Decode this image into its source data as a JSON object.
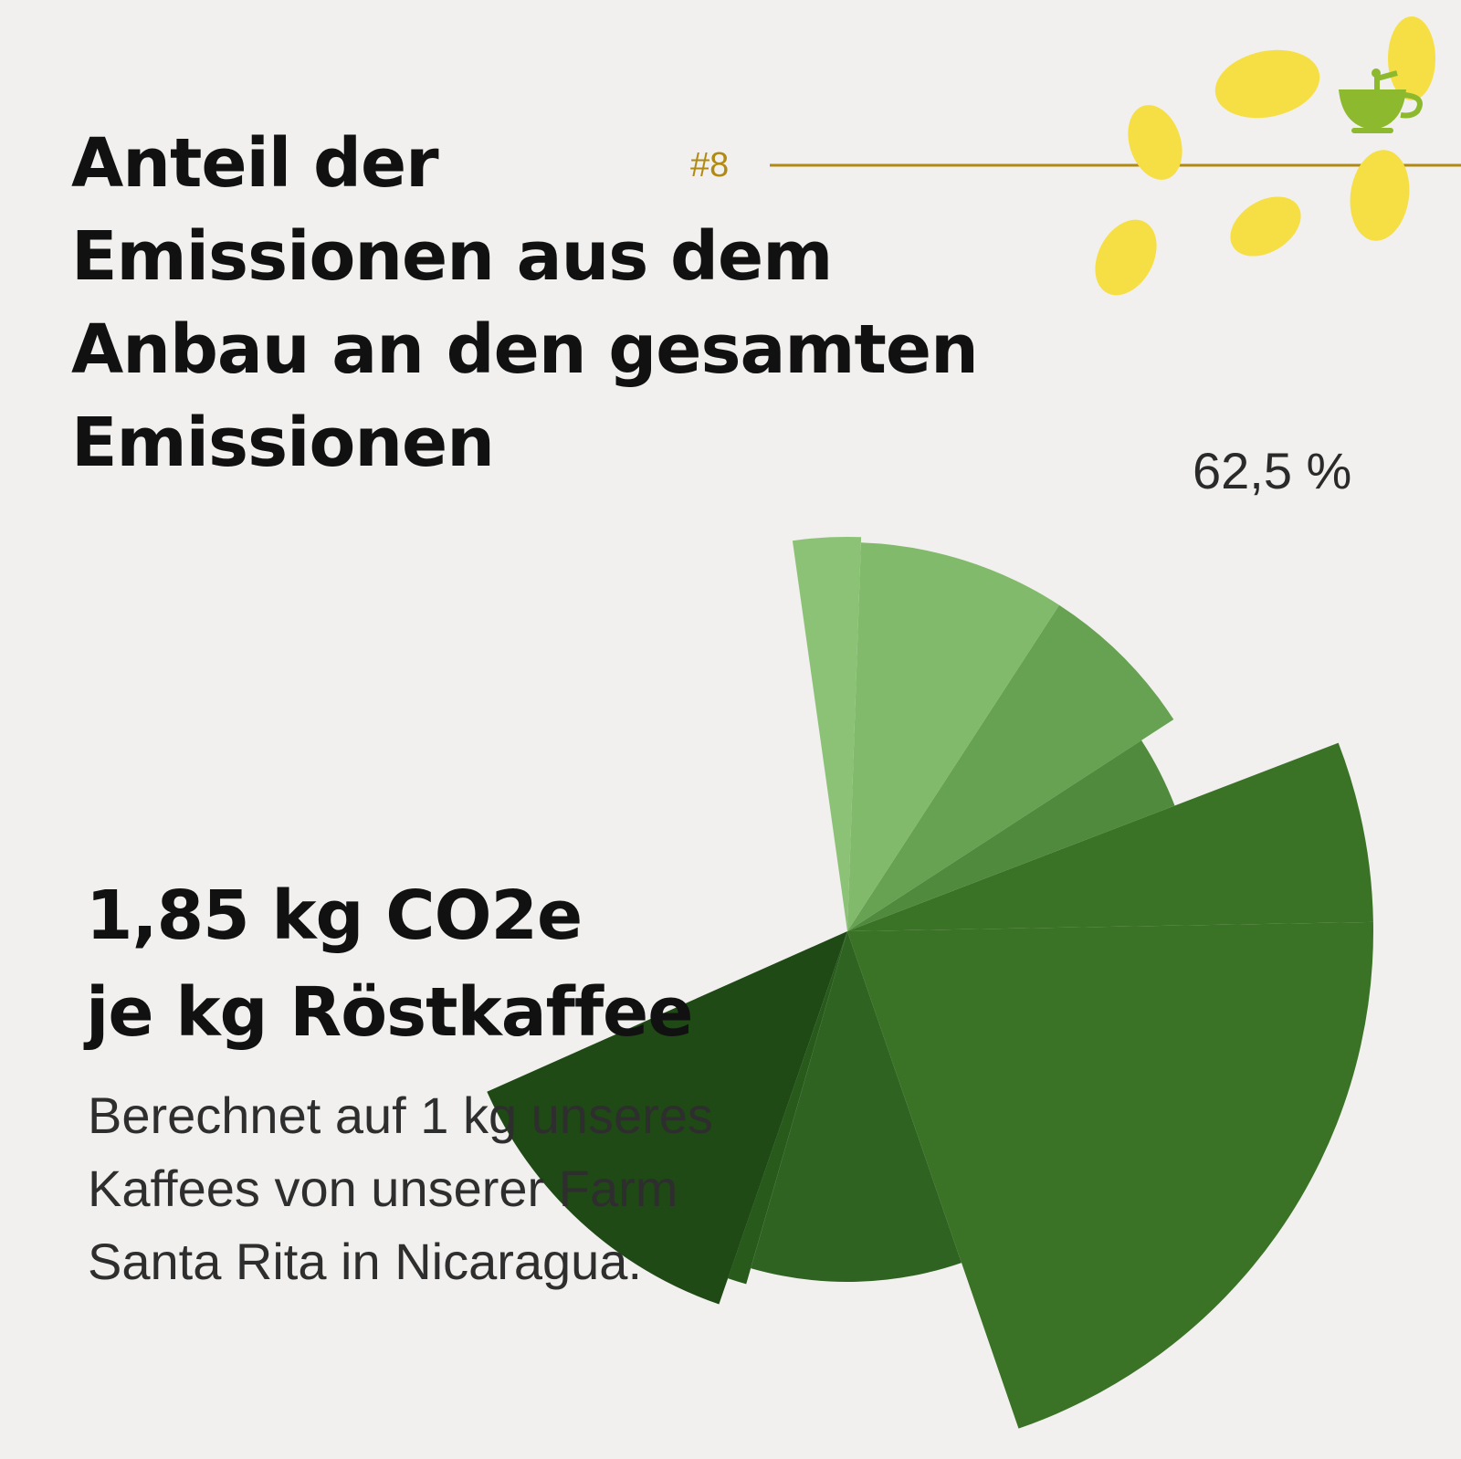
{
  "header": {
    "title_lines": [
      "Anteil der",
      "Emissionen aus dem",
      "Anbau an den gesamten",
      "Emissionen"
    ],
    "issue_number": "#8"
  },
  "summary": {
    "headline_lines": [
      "1,85 kg CO2e",
      "je kg Röstkaffee"
    ],
    "description_lines": [
      "Berechnet auf 1 kg unseres",
      "Kaffees von unserer Farm",
      "Santa Rita in Nicaragua."
    ]
  },
  "colors": {
    "background": "#f1f0ee",
    "accent_line": "#b08a12",
    "bean_yellow": "#f6df45",
    "cup_green": "#8cb92e"
  },
  "chart_data": {
    "type": "pie",
    "style": "rose",
    "highlight_label": "62,5 %",
    "slices": [
      {
        "start_deg": 1.0,
        "end_deg": 21.0,
        "radius": 0.96,
        "color": "#3a7226"
      },
      {
        "start_deg": 21.0,
        "end_deg": 33.0,
        "radius": 0.64,
        "color": "#4f8a3d"
      },
      {
        "start_deg": 33.0,
        "end_deg": 57.0,
        "radius": 0.71,
        "color": "#67a152"
      },
      {
        "start_deg": 57.0,
        "end_deg": 88.0,
        "radius": 0.71,
        "color": "#80ba6a"
      },
      {
        "start_deg": 88.0,
        "end_deg": 98.0,
        "radius": 0.72,
        "color": "#8cc276"
      },
      {
        "start_deg": 204.0,
        "end_deg": 251.0,
        "radius": 0.72,
        "color": "#1f4a16"
      },
      {
        "start_deg": 251.0,
        "end_deg": 254.0,
        "radius": 0.67,
        "color": "#275a1b"
      },
      {
        "start_deg": 254.0,
        "end_deg": 289.0,
        "radius": 0.64,
        "color": "#2f6322"
      },
      {
        "start_deg": 289.0,
        "end_deg": 361.0,
        "radius": 0.96,
        "color": "#3a7226"
      }
    ]
  }
}
